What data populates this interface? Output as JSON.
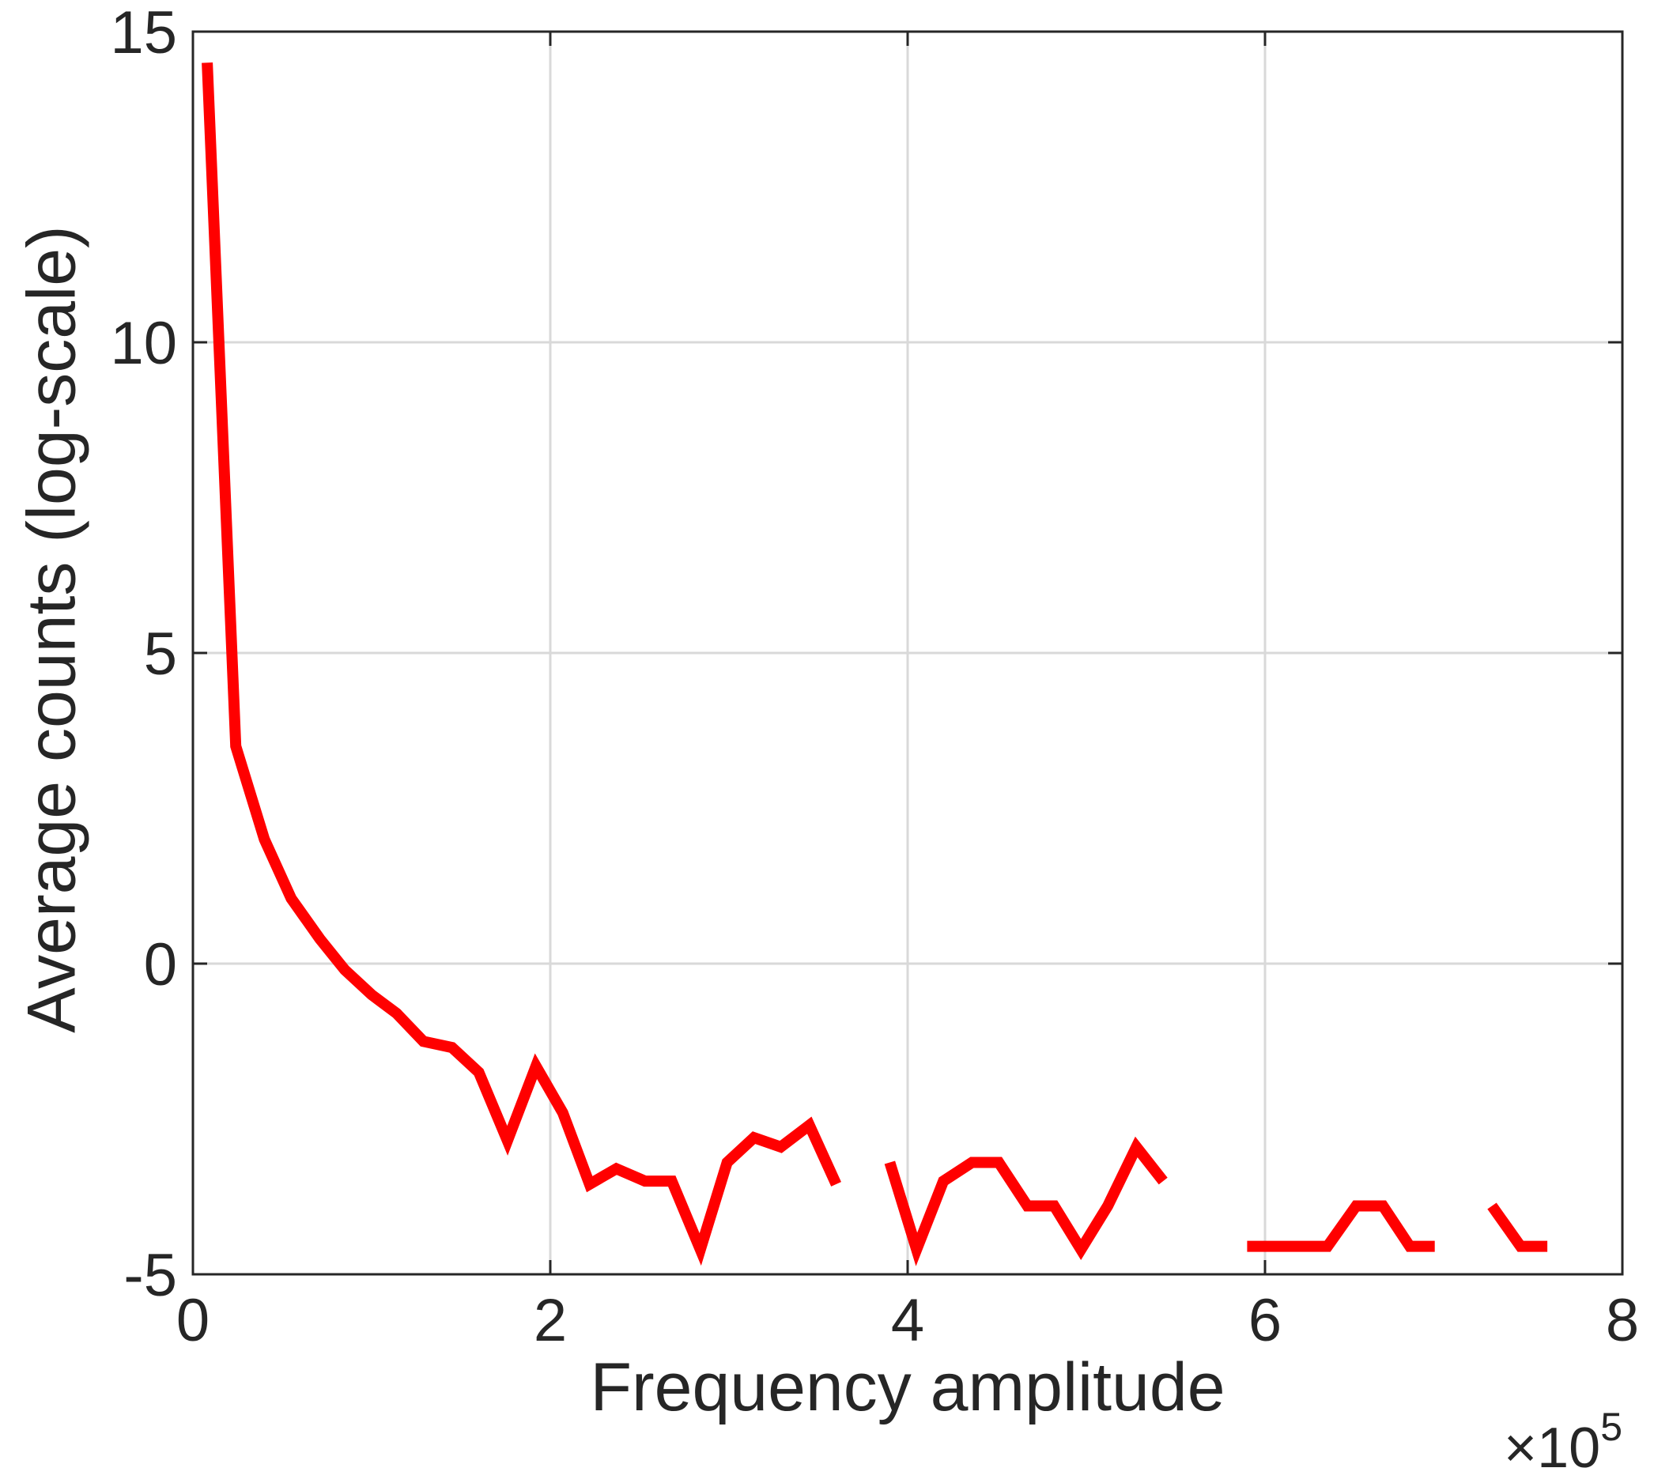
{
  "chart_data": {
    "type": "line",
    "title": "",
    "xlabel": "Frequency amplitude",
    "ylabel": "Average counts (log-scale)",
    "x_multiplier": {
      "prefix": "×10",
      "exponent": "5"
    },
    "x_scale_factor": 100000,
    "xlim": [
      0,
      8
    ],
    "ylim": [
      -5,
      15
    ],
    "xticks": [
      0,
      2,
      4,
      6,
      8
    ],
    "yticks": [
      -5,
      0,
      5,
      10,
      15
    ],
    "xtick_labels": [
      "0",
      "2",
      "4",
      "6",
      "8"
    ],
    "ytick_labels": [
      "-5",
      "0",
      "5",
      "10",
      "15"
    ],
    "grid": true,
    "line_color": "#ff0000",
    "grid_color": "#d9d9d9",
    "axis_color": "#262626",
    "series": [
      {
        "segments": [
          [
            [
              0.08,
              14.5
            ],
            [
              0.24,
              3.5
            ],
            [
              0.4,
              2.0
            ],
            [
              0.55,
              1.05
            ],
            [
              0.71,
              0.4
            ],
            [
              0.85,
              -0.1
            ],
            [
              1.0,
              -0.5
            ],
            [
              1.14,
              -0.8
            ],
            [
              1.29,
              -1.25
            ],
            [
              1.45,
              -1.35
            ],
            [
              1.6,
              -1.75
            ],
            [
              1.76,
              -2.85
            ],
            [
              1.92,
              -1.65
            ],
            [
              2.07,
              -2.4
            ],
            [
              2.22,
              -3.55
            ],
            [
              2.37,
              -3.3
            ],
            [
              2.53,
              -3.5
            ],
            [
              2.68,
              -3.5
            ],
            [
              2.84,
              -4.6
            ],
            [
              2.99,
              -3.2
            ],
            [
              3.14,
              -2.8
            ],
            [
              3.29,
              -2.95
            ],
            [
              3.45,
              -2.6
            ],
            [
              3.6,
              -3.55
            ]
          ],
          [
            [
              3.9,
              -3.2
            ],
            [
              4.05,
              -4.6
            ],
            [
              4.2,
              -3.5
            ],
            [
              4.36,
              -3.2
            ],
            [
              4.51,
              -3.2
            ],
            [
              4.67,
              -3.9
            ],
            [
              4.82,
              -3.9
            ],
            [
              4.97,
              -4.6
            ],
            [
              5.12,
              -3.9
            ],
            [
              5.28,
              -2.95
            ],
            [
              5.43,
              -3.5
            ]
          ],
          [
            [
              5.9,
              -4.55
            ],
            [
              6.35,
              -4.55
            ],
            [
              6.51,
              -3.9
            ],
            [
              6.66,
              -3.9
            ],
            [
              6.81,
              -4.55
            ],
            [
              6.95,
              -4.55
            ]
          ],
          [
            [
              7.27,
              -3.9
            ],
            [
              7.43,
              -4.55
            ],
            [
              7.58,
              -4.55
            ]
          ]
        ]
      }
    ]
  }
}
